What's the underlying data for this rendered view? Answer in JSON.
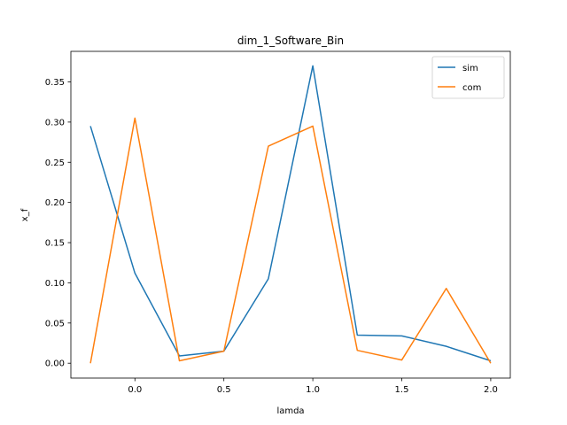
{
  "chart_data": {
    "type": "line",
    "title": "dim_1_Software_Bin",
    "xlabel": "lamda",
    "ylabel": "x_f",
    "xlim": [
      -0.36,
      2.11
    ],
    "ylim": [
      -0.0185,
      0.388
    ],
    "xticks": [
      0.0,
      0.5,
      1.0,
      1.5,
      2.0
    ],
    "xtick_labels": [
      "0.0",
      "0.5",
      "1.0",
      "1.5",
      "2.0"
    ],
    "yticks": [
      0.0,
      0.05,
      0.1,
      0.15,
      0.2,
      0.25,
      0.3,
      0.35
    ],
    "ytick_labels": [
      "0.00",
      "0.05",
      "0.10",
      "0.15",
      "0.20",
      "0.25",
      "0.30",
      "0.35"
    ],
    "grid": false,
    "legend": "top-right",
    "x": [
      -0.25,
      0.0,
      0.25,
      0.5,
      0.75,
      1.0,
      1.25,
      1.5,
      1.75,
      2.0
    ],
    "series": [
      {
        "name": "sim",
        "color": "#1f77b4",
        "values": [
          0.295,
          0.112,
          0.009,
          0.015,
          0.105,
          0.37,
          0.035,
          0.034,
          0.021,
          0.003
        ]
      },
      {
        "name": "com",
        "color": "#ff7f0e",
        "values": [
          0.0,
          0.305,
          0.003,
          0.015,
          0.27,
          0.295,
          0.016,
          0.004,
          0.093,
          0.0
        ]
      }
    ]
  }
}
